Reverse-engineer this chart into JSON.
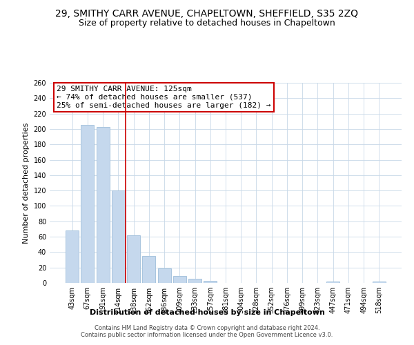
{
  "title": "29, SMITHY CARR AVENUE, CHAPELTOWN, SHEFFIELD, S35 2ZQ",
  "subtitle": "Size of property relative to detached houses in Chapeltown",
  "xlabel": "Distribution of detached houses by size in Chapeltown",
  "ylabel": "Number of detached properties",
  "bar_labels": [
    "43sqm",
    "67sqm",
    "91sqm",
    "114sqm",
    "138sqm",
    "162sqm",
    "186sqm",
    "209sqm",
    "233sqm",
    "257sqm",
    "281sqm",
    "304sqm",
    "328sqm",
    "352sqm",
    "376sqm",
    "399sqm",
    "423sqm",
    "447sqm",
    "471sqm",
    "494sqm",
    "518sqm"
  ],
  "bar_values": [
    68,
    205,
    203,
    120,
    62,
    35,
    19,
    9,
    5,
    3,
    0,
    0,
    0,
    0,
    0,
    0,
    0,
    2,
    0,
    0,
    2
  ],
  "bar_color": "#c5d8ed",
  "bar_edge_color": "#a8c4de",
  "vline_color": "#cc0000",
  "annotation_text": "29 SMITHY CARR AVENUE: 125sqm\n← 74% of detached houses are smaller (537)\n25% of semi-detached houses are larger (182) →",
  "annotation_box_color": "#ffffff",
  "annotation_box_edge": "#cc0000",
  "ylim": [
    0,
    260
  ],
  "yticks": [
    0,
    20,
    40,
    60,
    80,
    100,
    120,
    140,
    160,
    180,
    200,
    220,
    240,
    260
  ],
  "footnote": "Contains HM Land Registry data © Crown copyright and database right 2024.\nContains public sector information licensed under the Open Government Licence v3.0.",
  "bg_color": "#ffffff",
  "grid_color": "#c8d8e8",
  "title_fontsize": 10,
  "subtitle_fontsize": 9,
  "label_fontsize": 8,
  "tick_fontsize": 7,
  "annot_fontsize": 8,
  "footnote_fontsize": 6
}
